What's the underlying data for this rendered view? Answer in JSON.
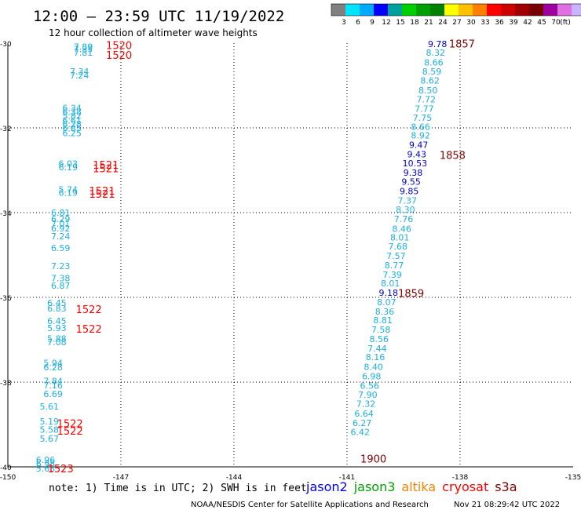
{
  "header": {
    "title": "12:00 – 23:59 UTC 11/19/2022",
    "subtitle": "12 hour collection of altimeter wave heights"
  },
  "colorbar": {
    "unit": "(ft)",
    "ticks": [
      "3",
      "6",
      "9",
      "12",
      "15",
      "18",
      "21",
      "24",
      "27",
      "30",
      "33",
      "36",
      "39",
      "42",
      "45",
      "70"
    ],
    "colors": [
      "#808080",
      "#00e5ff",
      "#00aaff",
      "#0000ff",
      "#00a0a0",
      "#00d000",
      "#00a000",
      "#008000",
      "#ffff00",
      "#ffc000",
      "#ff8000",
      "#ff0000",
      "#d00000",
      "#a00000",
      "#780000",
      "#a000a0",
      "#e070e0",
      "#c8b4ff",
      "#ff8cff",
      "#000000"
    ]
  },
  "chart_data": {
    "type": "scatter",
    "title": "12:00 – 23:59 UTC 11/19/2022",
    "subtitle": "12 hour collection of altimeter wave heights",
    "xlim": [
      -150,
      -135
    ],
    "ylim": [
      -40,
      -30
    ],
    "x_ticks": [
      -150,
      -147,
      -144,
      -141,
      -138,
      -135
    ],
    "y_ticks": [
      -30,
      -32,
      -34,
      -36,
      -38,
      -40
    ],
    "x_tick_labels": [
      "-150",
      "-147",
      "-144",
      "-141",
      "-138",
      "-135"
    ],
    "y_tick_labels": [
      "-30",
      "-32",
      "-34",
      "-36",
      "-38",
      "-40"
    ],
    "grid": true,
    "series": [
      {
        "name": "cryosat",
        "color": "#1bb0e0",
        "points": [
          {
            "x": -148.0,
            "y": -30.08,
            "v": "7.89"
          },
          {
            "x": -148.0,
            "y": -30.14,
            "v": "7.35"
          },
          {
            "x": -148.0,
            "y": -30.22,
            "v": "7.81"
          },
          {
            "x": -148.1,
            "y": -30.67,
            "v": "7.34"
          },
          {
            "x": -148.1,
            "y": -30.76,
            "v": "7.24"
          },
          {
            "x": -148.3,
            "y": -31.53,
            "v": "6.34"
          },
          {
            "x": -148.3,
            "y": -31.62,
            "v": "6.38"
          },
          {
            "x": -148.3,
            "y": -31.71,
            "v": "5.82"
          },
          {
            "x": -148.3,
            "y": -31.82,
            "v": "6.61"
          },
          {
            "x": -148.3,
            "y": -31.91,
            "v": "6.28"
          },
          {
            "x": -148.3,
            "y": -32.01,
            "v": "6.85"
          },
          {
            "x": -148.3,
            "y": -32.12,
            "v": "6.25"
          },
          {
            "x": -148.4,
            "y": -32.84,
            "v": "6.03"
          },
          {
            "x": -148.4,
            "y": -32.93,
            "v": "6.19"
          },
          {
            "x": -148.4,
            "y": -33.45,
            "v": "5.74"
          },
          {
            "x": -148.4,
            "y": -33.53,
            "v": "6.19"
          },
          {
            "x": -148.6,
            "y": -34.0,
            "v": "6.81"
          },
          {
            "x": -148.6,
            "y": -34.15,
            "v": "6.29"
          },
          {
            "x": -148.6,
            "y": -34.26,
            "v": "7.01"
          },
          {
            "x": -148.6,
            "y": -34.37,
            "v": "6.92"
          },
          {
            "x": -148.6,
            "y": -34.56,
            "v": "7.24"
          },
          {
            "x": -148.6,
            "y": -34.83,
            "v": "6.59"
          },
          {
            "x": -148.6,
            "y": -35.26,
            "v": "7.23"
          },
          {
            "x": -148.6,
            "y": -35.55,
            "v": "7.38"
          },
          {
            "x": -148.6,
            "y": -35.72,
            "v": "6.87"
          },
          {
            "x": -148.7,
            "y": -36.13,
            "v": "6.45"
          },
          {
            "x": -148.7,
            "y": -36.26,
            "v": "6.83"
          },
          {
            "x": -148.7,
            "y": -36.56,
            "v": "6.45"
          },
          {
            "x": -148.7,
            "y": -36.72,
            "v": "5.93"
          },
          {
            "x": -148.7,
            "y": -36.97,
            "v": "5.88"
          },
          {
            "x": -148.7,
            "y": -37.06,
            "v": "7.08"
          },
          {
            "x": -148.8,
            "y": -37.55,
            "v": "5.94"
          },
          {
            "x": -148.8,
            "y": -37.65,
            "v": "6.28"
          },
          {
            "x": -148.8,
            "y": -37.97,
            "v": "7.84"
          },
          {
            "x": -148.8,
            "y": -38.07,
            "v": "7.16"
          },
          {
            "x": -148.8,
            "y": -38.28,
            "v": "6.69"
          },
          {
            "x": -148.9,
            "y": -38.57,
            "v": "5.61"
          },
          {
            "x": -148.9,
            "y": -38.93,
            "v": "5.19"
          },
          {
            "x": -148.9,
            "y": -39.12,
            "v": "5.58"
          },
          {
            "x": -148.9,
            "y": -39.33,
            "v": "5.67"
          },
          {
            "x": -149.0,
            "y": -39.83,
            "v": "6.96"
          },
          {
            "x": -149.0,
            "y": -39.93,
            "v": "6.98"
          },
          {
            "x": -149.0,
            "y": -40.04,
            "v": "5.63"
          }
        ]
      },
      {
        "name": "jason2",
        "color": "#1bb0e0",
        "points": [
          {
            "x": -138.6,
            "y": -30.02,
            "v": "9.78",
            "c": "#0000cc"
          },
          {
            "x": -138.65,
            "y": -30.22,
            "v": "8.32"
          },
          {
            "x": -138.7,
            "y": -30.45,
            "v": "8.66"
          },
          {
            "x": -138.75,
            "y": -30.67,
            "v": "8.59"
          },
          {
            "x": -138.8,
            "y": -30.88,
            "v": "8.62"
          },
          {
            "x": -138.85,
            "y": -31.11,
            "v": "8.50"
          },
          {
            "x": -138.9,
            "y": -31.32,
            "v": "7.72"
          },
          {
            "x": -138.95,
            "y": -31.55,
            "v": "7.77"
          },
          {
            "x": -139.0,
            "y": -31.76,
            "v": "7.75"
          },
          {
            "x": -139.05,
            "y": -31.97,
            "v": "8.66"
          },
          {
            "x": -139.05,
            "y": -32.18,
            "v": "8.92"
          },
          {
            "x": -139.1,
            "y": -32.4,
            "v": "9.47",
            "c": "#0000cc"
          },
          {
            "x": -139.15,
            "y": -32.62,
            "v": "9.43",
            "c": "#0000cc"
          },
          {
            "x": -139.2,
            "y": -32.83,
            "v": "10.53",
            "c": "#0000cc"
          },
          {
            "x": -139.25,
            "y": -33.06,
            "v": "9.38",
            "c": "#0000cc"
          },
          {
            "x": -139.3,
            "y": -33.27,
            "v": "9.55",
            "c": "#0000cc"
          },
          {
            "x": -139.35,
            "y": -33.49,
            "v": "9.85",
            "c": "#0000cc"
          },
          {
            "x": -139.4,
            "y": -33.71,
            "v": "7.37"
          },
          {
            "x": -139.45,
            "y": -33.93,
            "v": "8.30"
          },
          {
            "x": -139.5,
            "y": -34.15,
            "v": "7.76"
          },
          {
            "x": -139.55,
            "y": -34.38,
            "v": "8.46"
          },
          {
            "x": -139.6,
            "y": -34.58,
            "v": "8.01"
          },
          {
            "x": -139.65,
            "y": -34.8,
            "v": "7.68"
          },
          {
            "x": -139.7,
            "y": -35.02,
            "v": "7.57"
          },
          {
            "x": -139.75,
            "y": -35.24,
            "v": "8.77"
          },
          {
            "x": -139.8,
            "y": -35.46,
            "v": "7.39"
          },
          {
            "x": -139.85,
            "y": -35.67,
            "v": "8.01"
          },
          {
            "x": -139.9,
            "y": -35.89,
            "v": "9.18",
            "c": "#0000cc"
          },
          {
            "x": -139.95,
            "y": -36.11,
            "v": "8.07"
          },
          {
            "x": -140.0,
            "y": -36.33,
            "v": "8.36"
          },
          {
            "x": -140.05,
            "y": -36.54,
            "v": "8.81"
          },
          {
            "x": -140.1,
            "y": -36.76,
            "v": "7.58"
          },
          {
            "x": -140.15,
            "y": -36.98,
            "v": "8.56"
          },
          {
            "x": -140.2,
            "y": -37.2,
            "v": "7.44"
          },
          {
            "x": -140.25,
            "y": -37.41,
            "v": "8.16"
          },
          {
            "x": -140.3,
            "y": -37.64,
            "v": "8.40"
          },
          {
            "x": -140.35,
            "y": -37.86,
            "v": "6.98"
          },
          {
            "x": -140.4,
            "y": -38.08,
            "v": "6.56"
          },
          {
            "x": -140.45,
            "y": -38.3,
            "v": "7.90"
          },
          {
            "x": -140.5,
            "y": -38.51,
            "v": "7.32"
          },
          {
            "x": -140.55,
            "y": -38.74,
            "v": "6.64"
          },
          {
            "x": -140.6,
            "y": -38.96,
            "v": "6.27"
          },
          {
            "x": -140.65,
            "y": -39.18,
            "v": "6.42"
          }
        ]
      }
    ],
    "time_labels": [
      {
        "x": -147.05,
        "y": -30.05,
        "t": "1520",
        "color": "#ff0000"
      },
      {
        "x": -147.05,
        "y": -30.28,
        "t": "1520",
        "color": "#ff0000"
      },
      {
        "x": -147.4,
        "y": -32.87,
        "t": "1521",
        "color": "#ff0000"
      },
      {
        "x": -147.4,
        "y": -32.95,
        "t": "1521",
        "color": "#ff0000"
      },
      {
        "x": -147.5,
        "y": -33.48,
        "t": "1521",
        "color": "#ff0000"
      },
      {
        "x": -147.5,
        "y": -33.56,
        "t": "1521",
        "color": "#ff0000"
      },
      {
        "x": -147.85,
        "y": -36.28,
        "t": "1522",
        "color": "#ff0000"
      },
      {
        "x": -147.85,
        "y": -36.74,
        "t": "1522",
        "color": "#ff0000"
      },
      {
        "x": -148.35,
        "y": -38.97,
        "t": "1522",
        "color": "#ff0000"
      },
      {
        "x": -148.35,
        "y": -39.15,
        "t": "1522",
        "color": "#ff0000"
      },
      {
        "x": -148.6,
        "y": -40.04,
        "t": "1523",
        "color": "#ff0000"
      },
      {
        "x": -137.95,
        "y": -30.01,
        "t": "1857",
        "color": "#800000"
      },
      {
        "x": -138.2,
        "y": -32.64,
        "t": "1858",
        "color": "#800000"
      },
      {
        "x": -139.3,
        "y": -35.9,
        "t": "1859",
        "color": "#800000"
      },
      {
        "x": -140.3,
        "y": -39.81,
        "t": "1900",
        "color": "#800000"
      }
    ]
  },
  "footer": {
    "note": "note:  1) Time is in UTC; 2) SWH is in feet",
    "satellites": [
      {
        "name": "jason2",
        "color": "#0000ff"
      },
      {
        "name": "jason3",
        "color": "#00a000"
      },
      {
        "name": "altika",
        "color": "#ff8000"
      },
      {
        "name": "cryosat",
        "color": "#ff0000"
      },
      {
        "name": "s3a",
        "color": "#800000"
      }
    ],
    "credit": "NOAA/NESDIS Center for Satellite Applications and Research",
    "timestamp": "Nov 21 08:29:42 UTC 2022"
  }
}
